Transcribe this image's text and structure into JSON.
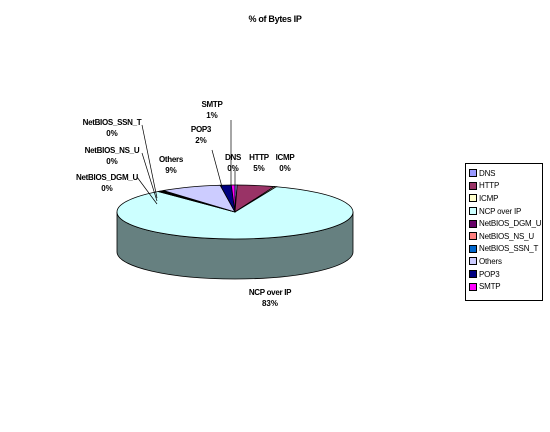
{
  "chart_data": {
    "type": "pie",
    "title": "% of Bytes IP",
    "slices": [
      {
        "name": "DNS",
        "percent_label": "0%",
        "value": 0.3,
        "color": "#9999ff"
      },
      {
        "name": "HTTP",
        "percent_label": "5%",
        "value": 5.1,
        "color": "#993366"
      },
      {
        "name": "ICMP",
        "percent_label": "0%",
        "value": 0.3,
        "color": "#ffffcc"
      },
      {
        "name": "NCP over IP",
        "percent_label": "83%",
        "value": 83.0,
        "color": "#ccffff"
      },
      {
        "name": "NetBIOS_DGM_U",
        "percent_label": "0%",
        "value": 0.3,
        "color": "#660066"
      },
      {
        "name": "NetBIOS_NS_U",
        "percent_label": "0%",
        "value": 0.3,
        "color": "#ff8080"
      },
      {
        "name": "NetBIOS_SSN_T",
        "percent_label": "0%",
        "value": 0.3,
        "color": "#0066cc"
      },
      {
        "name": "Others",
        "percent_label": "9%",
        "value": 8.4,
        "color": "#ccccff"
      },
      {
        "name": "POP3",
        "percent_label": "2%",
        "value": 1.5,
        "color": "#000080"
      },
      {
        "name": "SMTP",
        "percent_label": "1%",
        "value": 0.5,
        "color": "#ff00ff"
      }
    ],
    "legend_position": "right",
    "three_d": true
  }
}
